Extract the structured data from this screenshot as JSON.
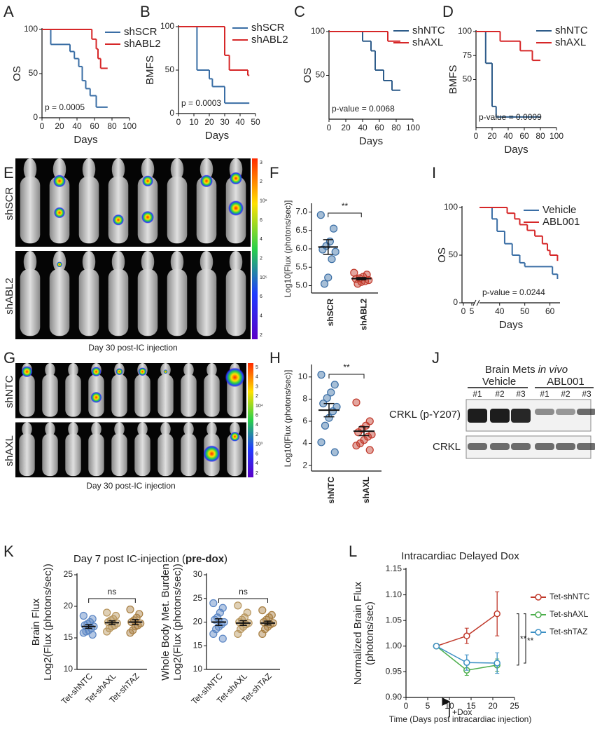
{
  "panel_labels": [
    "A",
    "B",
    "C",
    "D",
    "E",
    "F",
    "G",
    "H",
    "I",
    "J",
    "K",
    "L"
  ],
  "chart_data": [
    {
      "type": "line",
      "step": true,
      "xlabel": "Days",
      "ylabel": "OS",
      "annotation": "p = 0.0005",
      "xlim": [
        0,
        100
      ],
      "xticks": [
        0,
        20,
        40,
        60,
        80,
        100
      ],
      "ylim": [
        0,
        100
      ],
      "yticks": [
        0,
        50,
        100
      ],
      "series": [
        {
          "name": "shSCR",
          "color": "#3a6ea5",
          "x": [
            0,
            10,
            32,
            37,
            42,
            46,
            50,
            55,
            62,
            75
          ],
          "values": [
            100,
            83,
            75,
            67,
            58,
            42,
            33,
            25,
            12,
            12
          ]
        },
        {
          "name": "shABL2",
          "color": "#d62728",
          "x": [
            0,
            57,
            62,
            64,
            67,
            75
          ],
          "values": [
            100,
            89,
            78,
            67,
            56,
            56
          ]
        }
      ]
    },
    {
      "type": "line",
      "step": true,
      "xlabel": "Days",
      "ylabel": "BMFS",
      "annotation": "p = 0.0003",
      "xlim": [
        0,
        50
      ],
      "xticks": [
        0,
        10,
        20,
        30,
        40,
        50
      ],
      "ylim": [
        0,
        100
      ],
      "yticks": [
        0,
        50,
        100
      ],
      "series": [
        {
          "name": "shSCR",
          "color": "#3a6ea5",
          "x": [
            0,
            12,
            20,
            22,
            30,
            46
          ],
          "values": [
            100,
            50,
            40,
            31,
            12,
            12
          ]
        },
        {
          "name": "shABL2",
          "color": "#d62728",
          "x": [
            0,
            30,
            33,
            45,
            46
          ],
          "values": [
            100,
            67,
            50,
            44,
            44
          ]
        }
      ]
    },
    {
      "type": "line",
      "step": true,
      "xlabel": "Days",
      "ylabel": "OS",
      "annotation": "p-value = 0.0068",
      "xlim": [
        0,
        100
      ],
      "xticks": [
        0,
        20,
        40,
        60,
        80,
        100
      ],
      "ylim": [
        0,
        100
      ],
      "yticks": [
        50,
        100
      ],
      "series": [
        {
          "name": "shNTC",
          "color": "#2e5c8a",
          "x": [
            0,
            40,
            50,
            55,
            65,
            75,
            85
          ],
          "values": [
            100,
            89,
            78,
            56,
            44,
            33,
            33
          ]
        },
        {
          "name": "shAXL",
          "color": "#d62728",
          "x": [
            0,
            70,
            85
          ],
          "values": [
            100,
            89,
            89
          ]
        }
      ]
    },
    {
      "type": "line",
      "step": true,
      "xlabel": "Days",
      "ylabel": "BMFS",
      "annotation": "p-value = 0.0009",
      "xlim": [
        0,
        100
      ],
      "xticks": [
        0,
        20,
        40,
        60,
        80,
        100
      ],
      "ylim": [
        0,
        100
      ],
      "yticks": [
        50,
        75,
        100
      ],
      "series": [
        {
          "name": "shNTC",
          "color": "#2e5c8a",
          "x": [
            0,
            12,
            20,
            25,
            80
          ],
          "values": [
            100,
            67,
            22,
            11,
            11
          ]
        },
        {
          "name": "shAXL",
          "color": "#d62728",
          "x": [
            0,
            30,
            55,
            70,
            80
          ],
          "values": [
            100,
            90,
            80,
            70,
            70
          ]
        }
      ]
    },
    {
      "type": "strip",
      "ylabel": "Log10[Flux (photons/sec)]",
      "annotation": "**",
      "ylim": [
        4.8,
        7.2
      ],
      "yticks": [
        {
          "value": 5,
          "label": "5.0"
        },
        5.5,
        {
          "value": 6,
          "label": "6.0"
        },
        6.5,
        {
          "value": 7,
          "label": "7.0"
        }
      ],
      "groups": [
        {
          "name": "shSCR",
          "color": "#3a6ea5",
          "values": [
            6.92,
            6.55,
            6.2,
            6.08,
            5.98,
            5.92,
            5.72,
            5.22,
            5.05
          ],
          "mean": 6.05,
          "sem": 0.2
        },
        {
          "name": "shABL2",
          "color": "#c0392b",
          "values": [
            5.35,
            5.3,
            5.24,
            5.2,
            5.18,
            5.15,
            5.12,
            5.1,
            5.05
          ],
          "mean": 5.19,
          "sem": 0.03
        }
      ]
    },
    {
      "type": "strip",
      "ylabel": "Log10[Flux (photons/sec)]",
      "annotation": "**",
      "ylim": [
        1.5,
        11
      ],
      "yticks": [
        2,
        4,
        6,
        8,
        10
      ],
      "groups": [
        {
          "name": "shNTC",
          "color": "#3a6ea5",
          "values": [
            10.2,
            9.3,
            8.6,
            8.1,
            7.6,
            7.3,
            6.9,
            6.3,
            5.6,
            4.1,
            3.2
          ],
          "mean": 7.0,
          "sem": 0.6
        },
        {
          "name": "shAXL",
          "color": "#c0392b",
          "values": [
            7.7,
            6.0,
            5.6,
            5.3,
            5.0,
            4.8,
            4.6,
            4.3,
            4.0,
            3.8,
            3.4
          ],
          "mean": 5.1,
          "sem": 0.4
        }
      ]
    },
    {
      "type": "line",
      "step": true,
      "xlabel": "Days",
      "ylabel": "OS",
      "annotation": "p-value = 0.0244",
      "xlim": [
        32,
        64
      ],
      "xticks": [
        40,
        50,
        60
      ],
      "xbreak_ticks": [
        0,
        5
      ],
      "ylim": [
        0,
        100
      ],
      "yticks": [
        0,
        50,
        100
      ],
      "series": [
        {
          "name": "Vehicle",
          "color": "#3a6ea5",
          "x": [
            32,
            37,
            39,
            42,
            45,
            48,
            50,
            61,
            63
          ],
          "values": [
            100,
            88,
            75,
            62,
            50,
            42,
            38,
            30,
            25
          ]
        },
        {
          "name": "ABL001",
          "color": "#d62728",
          "x": [
            32,
            43,
            46,
            48,
            51,
            54,
            57,
            59,
            60,
            63
          ],
          "values": [
            100,
            94,
            88,
            82,
            76,
            70,
            62,
            55,
            50,
            44
          ]
        }
      ]
    },
    {
      "type": "strip",
      "ylabel": [
        "Brain Flux",
        "Log2(Flux (photons/sec))"
      ],
      "annotation": "ns",
      "ylim": [
        10,
        25
      ],
      "yticks": [
        10,
        15,
        20,
        25
      ],
      "groups": [
        {
          "name": "Tet-shNTC",
          "color": "#5b86c4",
          "values": [
            18.5,
            18,
            17.5,
            17.2,
            17,
            16.8,
            16.5,
            16.2,
            16,
            15.8,
            15.5
          ],
          "mean": 16.8,
          "sem": 0.3
        },
        {
          "name": "Tet-shAXL",
          "color": "#b8965e",
          "values": [
            19,
            18.5,
            18,
            17.8,
            17.5,
            17.3,
            17,
            16.8,
            16.5,
            16
          ],
          "mean": 17.4,
          "sem": 0.3
        },
        {
          "name": "Tet-shTAZ",
          "color": "#a87f42",
          "values": [
            19.5,
            18.8,
            18.2,
            17.8,
            17.5,
            17.3,
            17,
            16.8,
            16.2,
            15.8
          ],
          "mean": 17.5,
          "sem": 0.4
        }
      ]
    },
    {
      "type": "strip",
      "ylabel": [
        "Whole Body Met. Burden",
        "Log2(Flux (photons/sec))"
      ],
      "annotation": "ns",
      "ylim": [
        10,
        30
      ],
      "yticks": [
        10,
        15,
        20,
        25,
        30
      ],
      "groups": [
        {
          "name": "Tet-shNTC",
          "color": "#5b86c4",
          "values": [
            24,
            23,
            22,
            21,
            20.5,
            20,
            19.5,
            19,
            18.5,
            17.5,
            16.5
          ],
          "mean": 20,
          "sem": 0.7
        },
        {
          "name": "Tet-shAXL",
          "color": "#b8965e",
          "values": [
            23.5,
            22,
            21,
            20.5,
            20,
            19.8,
            19.5,
            19,
            18.5,
            17.5
          ],
          "mean": 19.8,
          "sem": 0.5
        },
        {
          "name": "Tet-shTAZ",
          "color": "#a87f42",
          "values": [
            22.5,
            21.5,
            21,
            20.5,
            20,
            19.8,
            19.5,
            19,
            18.5,
            17.5
          ],
          "mean": 19.8,
          "sem": 0.4
        }
      ]
    },
    {
      "type": "line",
      "title": "Intracardiac Delayed Dox",
      "xlabel": "Time (Days post intracardiac injection)",
      "ylabel": [
        "Normalized Brain Flux",
        "(photons/sec)"
      ],
      "dox_label": "+Dox",
      "annotations": [
        "**",
        "**"
      ],
      "xlim": [
        0,
        25
      ],
      "xticks": [
        0,
        5,
        10,
        15,
        20,
        25
      ],
      "ylim": [
        0.9,
        1.15
      ],
      "yticks": [
        {
          "value": 0.9,
          "label": "0.90"
        },
        0.95,
        {
          "value": 1,
          "label": "1.00"
        },
        1.05,
        {
          "value": 1.1,
          "label": "1.10"
        },
        1.15
      ],
      "series": [
        {
          "name": "Tet-shNTC",
          "color": "#c0392b",
          "x": [
            7,
            14,
            21
          ],
          "values": [
            1.0,
            1.02,
            1.063
          ],
          "errors": [
            0,
            0.015,
            0.043
          ]
        },
        {
          "name": "Tet-shAXL",
          "color": "#4cae4c",
          "x": [
            7,
            14,
            21
          ],
          "values": [
            1.0,
            0.953,
            0.963
          ],
          "errors": [
            0,
            0.01,
            0.012
          ]
        },
        {
          "name": "Tet-shTAZ",
          "color": "#3b8fc4",
          "x": [
            7,
            14,
            21
          ],
          "values": [
            1.0,
            0.968,
            0.967
          ],
          "errors": [
            0,
            0.015,
            0.02
          ]
        }
      ]
    }
  ],
  "images": [
    {
      "rows": [
        "shSCR",
        "shABL2"
      ],
      "caption": "Day 30 post-IC injection",
      "colorbar": [
        "3",
        "2",
        "10⁶",
        "6",
        "4",
        "2",
        "10⁵",
        "6",
        "4",
        "2"
      ]
    },
    {
      "rows": [
        "shNTC",
        "shAXL"
      ],
      "caption": "Day 30 post-IC injection",
      "colorbar": [
        "5",
        "4",
        "3",
        "2",
        "10⁴",
        "6",
        "4",
        "2",
        "10³",
        "6",
        "4",
        "2"
      ]
    }
  ],
  "blot": {
    "title": "Brain Mets",
    "title_italic": "in vivo",
    "groups": [
      "Vehicle",
      "ABL001"
    ],
    "lanes": [
      "#1",
      "#2",
      "#3",
      "#1",
      "#2",
      "#3"
    ],
    "rows": [
      "CRKL (p-Y207)",
      "CRKL"
    ]
  },
  "panel_k": {
    "title": [
      "Day 7 post IC-injection (",
      "pre-dox",
      ")"
    ]
  }
}
